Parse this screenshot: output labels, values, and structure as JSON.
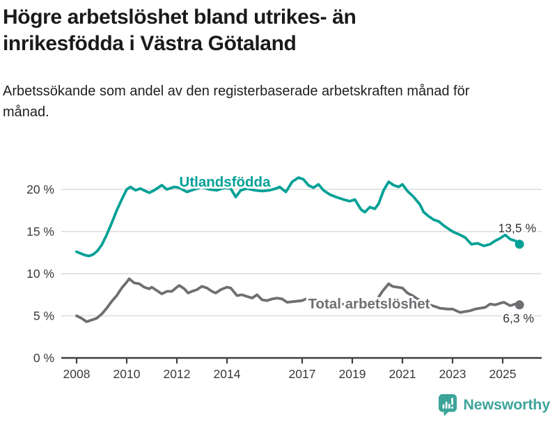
{
  "header": {
    "title_line1": "Högre arbetslöshet bland utrikes- än",
    "title_line2": "inrikesfödda i Västra Götaland",
    "subtitle": "Arbetssökande som andel av den registerbaserade arbetskraften månad för månad."
  },
  "footer": {
    "brand": "Newsworthy"
  },
  "colors": {
    "teal": "#00a096",
    "gray": "#6e6e73",
    "grid": "#dcdcdc",
    "axis": "#3f3f3f",
    "tick_text": "#3a3a3a",
    "brand_teal": "#3da49a"
  },
  "chart_data": {
    "type": "line",
    "title": "Högre arbetslöshet bland utrikes- än inrikesfödda i Västra Götaland",
    "subtitle": "Arbetssökande som andel av den registerbaserade arbetskraften månad för månad.",
    "xlabel": "",
    "ylabel": "",
    "xlim": [
      2007.4,
      2026.6
    ],
    "ylim": [
      0,
      22.5
    ],
    "grid": true,
    "legend_position": "inline-labels",
    "y_ticks": [
      {
        "value": 20,
        "label": "20 %"
      },
      {
        "value": 15,
        "label": "15 %"
      },
      {
        "value": 10,
        "label": "10 %"
      },
      {
        "value": 5,
        "label": "5 %"
      },
      {
        "value": 0,
        "label": "0 %"
      }
    ],
    "x_ticks": [
      {
        "value": 2008,
        "label": "2008"
      },
      {
        "value": 2010,
        "label": "2010"
      },
      {
        "value": 2012,
        "label": "2012"
      },
      {
        "value": 2014,
        "label": "2014"
      },
      {
        "value": 2017,
        "label": "2017"
      },
      {
        "value": 2019,
        "label": "2019"
      },
      {
        "value": 2021,
        "label": "2021"
      },
      {
        "value": 2023,
        "label": "2023"
      },
      {
        "value": 2025,
        "label": "2025"
      }
    ],
    "series": [
      {
        "id": "utlandsfodda",
        "name": "Utlandsfödda",
        "color": "#00a096",
        "end_label": "13,5 %",
        "end_value": 13.5,
        "points": [
          [
            2008.0,
            12.6
          ],
          [
            2008.17,
            12.4
          ],
          [
            2008.33,
            12.2
          ],
          [
            2008.5,
            12.1
          ],
          [
            2008.67,
            12.3
          ],
          [
            2008.83,
            12.7
          ],
          [
            2009.0,
            13.4
          ],
          [
            2009.2,
            14.6
          ],
          [
            2009.4,
            16.0
          ],
          [
            2009.6,
            17.5
          ],
          [
            2009.8,
            18.8
          ],
          [
            2010.0,
            20.0
          ],
          [
            2010.15,
            20.3
          ],
          [
            2010.35,
            19.9
          ],
          [
            2010.55,
            20.1
          ],
          [
            2010.75,
            19.8
          ],
          [
            2010.9,
            19.6
          ],
          [
            2011.1,
            19.9
          ],
          [
            2011.4,
            20.5
          ],
          [
            2011.6,
            20.0
          ],
          [
            2011.9,
            20.3
          ],
          [
            2012.1,
            20.2
          ],
          [
            2012.4,
            19.7
          ],
          [
            2012.7,
            20.0
          ],
          [
            2013.0,
            20.3
          ],
          [
            2013.3,
            20.0
          ],
          [
            2013.6,
            19.9
          ],
          [
            2013.9,
            20.2
          ],
          [
            2014.15,
            20.1
          ],
          [
            2014.35,
            19.1
          ],
          [
            2014.55,
            19.9
          ],
          [
            2014.8,
            20.1
          ],
          [
            2015.1,
            19.9
          ],
          [
            2015.4,
            19.8
          ],
          [
            2015.7,
            19.9
          ],
          [
            2015.95,
            20.1
          ],
          [
            2016.1,
            20.3
          ],
          [
            2016.35,
            19.7
          ],
          [
            2016.6,
            20.9
          ],
          [
            2016.85,
            21.4
          ],
          [
            2017.05,
            21.2
          ],
          [
            2017.25,
            20.5
          ],
          [
            2017.45,
            20.2
          ],
          [
            2017.65,
            20.6
          ],
          [
            2017.85,
            19.9
          ],
          [
            2018.1,
            19.4
          ],
          [
            2018.35,
            19.1
          ],
          [
            2018.65,
            18.8
          ],
          [
            2018.9,
            18.6
          ],
          [
            2019.1,
            18.8
          ],
          [
            2019.35,
            17.6
          ],
          [
            2019.5,
            17.3
          ],
          [
            2019.7,
            17.9
          ],
          [
            2019.9,
            17.7
          ],
          [
            2020.05,
            18.3
          ],
          [
            2020.25,
            19.9
          ],
          [
            2020.45,
            20.9
          ],
          [
            2020.65,
            20.5
          ],
          [
            2020.85,
            20.3
          ],
          [
            2021.0,
            20.6
          ],
          [
            2021.2,
            19.8
          ],
          [
            2021.45,
            19.1
          ],
          [
            2021.7,
            18.2
          ],
          [
            2021.85,
            17.3
          ],
          [
            2022.05,
            16.8
          ],
          [
            2022.25,
            16.4
          ],
          [
            2022.45,
            16.2
          ],
          [
            2022.65,
            15.7
          ],
          [
            2022.85,
            15.3
          ],
          [
            2023.0,
            15.0
          ],
          [
            2023.3,
            14.6
          ],
          [
            2023.5,
            14.3
          ],
          [
            2023.75,
            13.5
          ],
          [
            2024.0,
            13.6
          ],
          [
            2024.25,
            13.3
          ],
          [
            2024.5,
            13.5
          ],
          [
            2024.7,
            13.9
          ],
          [
            2024.9,
            14.2
          ],
          [
            2025.1,
            14.6
          ],
          [
            2025.3,
            14.1
          ],
          [
            2025.5,
            13.9
          ],
          [
            2025.67,
            13.5
          ]
        ]
      },
      {
        "id": "total",
        "name": "Total arbetslöshet",
        "color": "#6e6e73",
        "end_label": "6,3 %",
        "end_value": 6.3,
        "points": [
          [
            2008.0,
            5.0
          ],
          [
            2008.2,
            4.7
          ],
          [
            2008.4,
            4.3
          ],
          [
            2008.6,
            4.5
          ],
          [
            2008.8,
            4.7
          ],
          [
            2009.0,
            5.2
          ],
          [
            2009.2,
            5.9
          ],
          [
            2009.4,
            6.7
          ],
          [
            2009.6,
            7.4
          ],
          [
            2009.8,
            8.3
          ],
          [
            2010.0,
            9.0
          ],
          [
            2010.1,
            9.4
          ],
          [
            2010.3,
            8.9
          ],
          [
            2010.5,
            8.8
          ],
          [
            2010.7,
            8.4
          ],
          [
            2010.9,
            8.2
          ],
          [
            2011.0,
            8.4
          ],
          [
            2011.2,
            8.0
          ],
          [
            2011.4,
            7.6
          ],
          [
            2011.6,
            7.9
          ],
          [
            2011.8,
            7.9
          ],
          [
            2012.0,
            8.4
          ],
          [
            2012.1,
            8.6
          ],
          [
            2012.3,
            8.2
          ],
          [
            2012.45,
            7.7
          ],
          [
            2012.6,
            7.9
          ],
          [
            2012.8,
            8.1
          ],
          [
            2013.0,
            8.5
          ],
          [
            2013.2,
            8.3
          ],
          [
            2013.4,
            7.9
          ],
          [
            2013.55,
            7.7
          ],
          [
            2013.75,
            8.1
          ],
          [
            2014.0,
            8.4
          ],
          [
            2014.15,
            8.3
          ],
          [
            2014.4,
            7.4
          ],
          [
            2014.6,
            7.5
          ],
          [
            2014.8,
            7.3
          ],
          [
            2015.0,
            7.1
          ],
          [
            2015.2,
            7.5
          ],
          [
            2015.4,
            6.9
          ],
          [
            2015.6,
            6.8
          ],
          [
            2015.8,
            7.0
          ],
          [
            2016.0,
            7.1
          ],
          [
            2016.2,
            7.0
          ],
          [
            2016.4,
            6.6
          ],
          [
            2016.7,
            6.7
          ],
          [
            2017.0,
            6.8
          ],
          [
            2017.15,
            7.0
          ],
          [
            2017.4,
            6.8
          ],
          [
            2017.7,
            6.7
          ],
          [
            2018.0,
            6.6
          ],
          [
            2018.3,
            6.5
          ],
          [
            2018.6,
            6.4
          ],
          [
            2018.9,
            6.3
          ],
          [
            2019.2,
            6.4
          ],
          [
            2019.5,
            6.4
          ],
          [
            2019.8,
            6.6
          ],
          [
            2020.0,
            7.0
          ],
          [
            2020.2,
            7.9
          ],
          [
            2020.45,
            8.8
          ],
          [
            2020.6,
            8.5
          ],
          [
            2020.8,
            8.4
          ],
          [
            2021.0,
            8.3
          ],
          [
            2021.2,
            7.7
          ],
          [
            2021.4,
            7.4
          ],
          [
            2021.6,
            7.0
          ],
          [
            2021.8,
            6.7
          ],
          [
            2022.0,
            6.4
          ],
          [
            2022.2,
            6.2
          ],
          [
            2022.5,
            5.9
          ],
          [
            2022.8,
            5.8
          ],
          [
            2023.0,
            5.8
          ],
          [
            2023.3,
            5.4
          ],
          [
            2023.5,
            5.5
          ],
          [
            2023.7,
            5.6
          ],
          [
            2023.9,
            5.8
          ],
          [
            2024.1,
            5.9
          ],
          [
            2024.3,
            6.0
          ],
          [
            2024.5,
            6.4
          ],
          [
            2024.7,
            6.3
          ],
          [
            2024.9,
            6.5
          ],
          [
            2025.05,
            6.6
          ],
          [
            2025.3,
            6.2
          ],
          [
            2025.5,
            6.4
          ],
          [
            2025.67,
            6.3
          ]
        ]
      }
    ]
  }
}
